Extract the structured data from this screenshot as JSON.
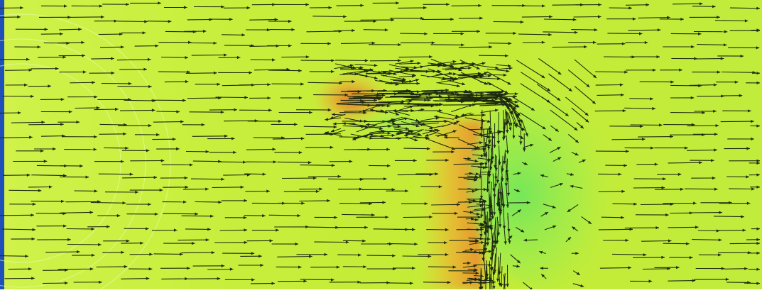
{
  "colors": {
    "page_background": "#ffffff",
    "left_edge_strip": "#1f4fb8",
    "field_base": "#c8f03a",
    "field_light": "#d8f55a",
    "stagnation_high": "#e0782a",
    "stagnation_mid": "#f0b82e",
    "wake_low": "#7ee85a",
    "arrow_color": "#1e2a10"
  },
  "icons": {
    "arrows": "velocity-vector-arrows",
    "obstacle": "inverted-l-obstacle-outline"
  }
}
